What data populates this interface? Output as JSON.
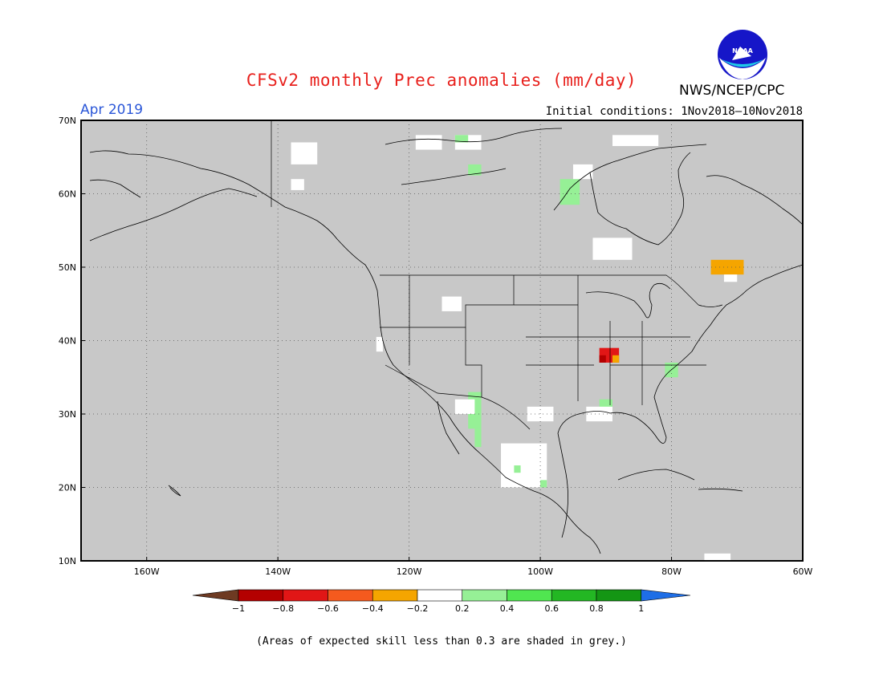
{
  "header": {
    "title": "CFSv2 monthly Prec anomalies (mm/day)",
    "org": "NWS/NCEP/CPC",
    "logo_text": "NOAA",
    "month": "Apr 2019",
    "initial_conditions": "Initial conditions: 1Nov2018–10Nov2018"
  },
  "map": {
    "lon_range": [
      -170,
      -60
    ],
    "lat_range": [
      10,
      70
    ],
    "lat_ticks": [
      {
        "value": 70,
        "label": "70N"
      },
      {
        "value": 60,
        "label": "60N"
      },
      {
        "value": 50,
        "label": "50N"
      },
      {
        "value": 40,
        "label": "40N"
      },
      {
        "value": 30,
        "label": "30N"
      },
      {
        "value": 20,
        "label": "20N"
      },
      {
        "value": 10,
        "label": "10N"
      }
    ],
    "lon_ticks": [
      {
        "value": -160,
        "label": "160W"
      },
      {
        "value": -140,
        "label": "140W"
      },
      {
        "value": -120,
        "label": "120W"
      },
      {
        "value": -100,
        "label": "100W"
      },
      {
        "value": -80,
        "label": "80W"
      },
      {
        "value": -60,
        "label": "60W"
      }
    ],
    "grid": true,
    "background_color": "#c8c8c8"
  },
  "colorbar": {
    "ticks": [
      "−1",
      "−0.8",
      "−0.6",
      "−0.4",
      "−0.2",
      "0.2",
      "0.4",
      "0.6",
      "0.8",
      "1"
    ],
    "colors": [
      "#6e3a22",
      "#b40000",
      "#e11616",
      "#f55a1e",
      "#f5a500",
      "#ffffff",
      "#96f096",
      "#50e650",
      "#23b723",
      "#149614",
      "#1e6ee6"
    ]
  },
  "anomaly_regions": [
    {
      "lon": [
        -138,
        -134
      ],
      "lat": [
        64,
        67
      ],
      "class": "white"
    },
    {
      "lon": [
        -138,
        -136
      ],
      "lat": [
        60.5,
        62
      ],
      "class": "white"
    },
    {
      "lon": [
        -119,
        -115
      ],
      "lat": [
        66,
        68
      ],
      "class": "white"
    },
    {
      "lon": [
        -113,
        -109
      ],
      "lat": [
        66,
        68
      ],
      "class": "white"
    },
    {
      "lon": [
        -113,
        -111
      ],
      "lat": [
        67,
        68
      ],
      "class": "light_green"
    },
    {
      "lon": [
        -111,
        -109
      ],
      "lat": [
        62.5,
        64
      ],
      "class": "light_green"
    },
    {
      "lon": [
        -97,
        -94
      ],
      "lat": [
        58.5,
        62
      ],
      "class": "light_green"
    },
    {
      "lon": [
        -95,
        -92
      ],
      "lat": [
        62,
        64
      ],
      "class": "white"
    },
    {
      "lon": [
        -89,
        -82
      ],
      "lat": [
        66.5,
        68
      ],
      "class": "white"
    },
    {
      "lon": [
        -92,
        -86
      ],
      "lat": [
        51,
        54
      ],
      "class": "white"
    },
    {
      "lon": [
        -74,
        -69
      ],
      "lat": [
        49,
        51
      ],
      "class": "orange"
    },
    {
      "lon": [
        -72,
        -70
      ],
      "lat": [
        48,
        49
      ],
      "class": "white"
    },
    {
      "lon": [
        -115,
        -112
      ],
      "lat": [
        44,
        46
      ],
      "class": "white"
    },
    {
      "lon": [
        -125,
        -124
      ],
      "lat": [
        38.5,
        40.5
      ],
      "class": "white"
    },
    {
      "lon": [
        -91,
        -88
      ],
      "lat": [
        37,
        39
      ],
      "class": "red"
    },
    {
      "lon": [
        -91,
        -90
      ],
      "lat": [
        37,
        38
      ],
      "class": "dark_red"
    },
    {
      "lon": [
        -89,
        -88
      ],
      "lat": [
        37,
        38
      ],
      "class": "orange"
    },
    {
      "lon": [
        -81,
        -79
      ],
      "lat": [
        35,
        37
      ],
      "class": "light_green"
    },
    {
      "lon": [
        -91,
        -89
      ],
      "lat": [
        30,
        32
      ],
      "class": "light_green"
    },
    {
      "lon": [
        -93,
        -89
      ],
      "lat": [
        29,
        31
      ],
      "class": "white"
    },
    {
      "lon": [
        -111,
        -109
      ],
      "lat": [
        28,
        33
      ],
      "class": "light_green"
    },
    {
      "lon": [
        -113,
        -110
      ],
      "lat": [
        30,
        32
      ],
      "class": "white"
    },
    {
      "lon": [
        -110,
        -109
      ],
      "lat": [
        25.5,
        28
      ],
      "class": "light_green"
    },
    {
      "lon": [
        -102,
        -98
      ],
      "lat": [
        29,
        31
      ],
      "class": "white"
    },
    {
      "lon": [
        -106,
        -99
      ],
      "lat": [
        20,
        26
      ],
      "class": "white"
    },
    {
      "lon": [
        -104,
        -103
      ],
      "lat": [
        22,
        23
      ],
      "class": "light_green"
    },
    {
      "lon": [
        -100,
        -99
      ],
      "lat": [
        20,
        21
      ],
      "class": "light_green"
    },
    {
      "lon": [
        -75,
        -71
      ],
      "lat": [
        9.5,
        11
      ],
      "class": "white"
    }
  ],
  "footnote": "(Areas of expected skill less than 0.3 are shaded in grey.)"
}
